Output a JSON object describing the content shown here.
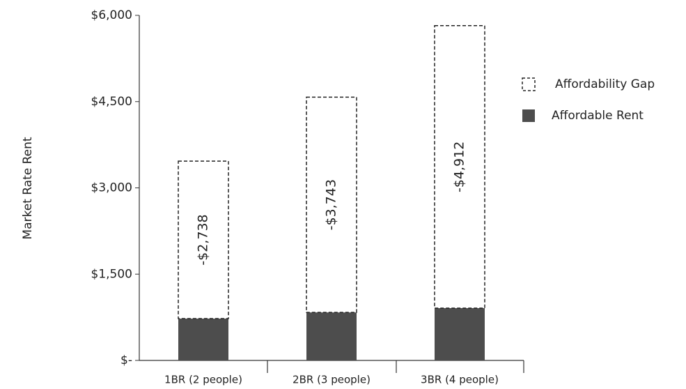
{
  "chart_data": {
    "type": "stacked_bar",
    "categories": [
      "1BR (2 people)",
      "2BR (3 people)",
      "3BR (4 people)"
    ],
    "series": [
      {
        "name": "Affordable Rent",
        "color": "#4d4d4d",
        "values": [
          727,
          835,
          909
        ]
      },
      {
        "name": "Affordability Gap",
        "color": "#ffffff",
        "values": [
          2738,
          3743,
          4912
        ],
        "value_labels": [
          "-$2,738",
          "-$3,743",
          "-$4,912"
        ]
      }
    ],
    "ylabel": "Market Rate Rent",
    "ylim": [
      0,
      6000
    ],
    "yticks": [
      {
        "value": 0,
        "label": "$-"
      },
      {
        "value": 1500,
        "label": "$1,500"
      },
      {
        "value": 3000,
        "label": "$3,000"
      },
      {
        "value": 4500,
        "label": "$4,500"
      },
      {
        "value": 6000,
        "label": "$6,000"
      }
    ]
  }
}
